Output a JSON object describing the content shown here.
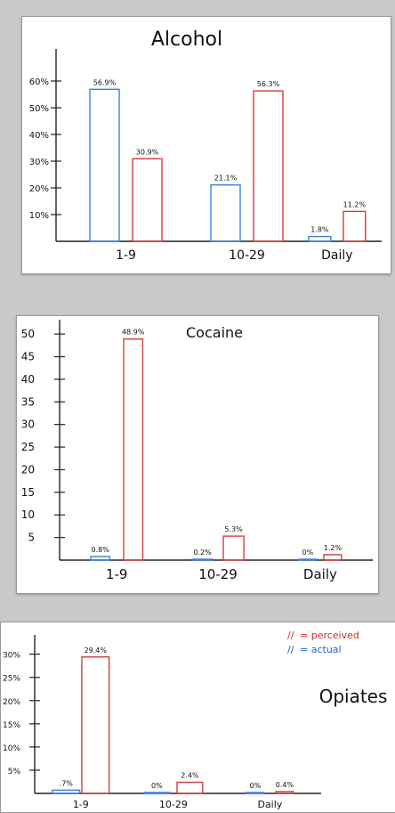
{
  "chart_data": [
    {
      "type": "bar",
      "title": "Alcohol",
      "categories": [
        "1-9",
        "10-29",
        "Daily"
      ],
      "yticks": [
        "60%",
        "50%",
        "40%",
        "30%",
        "20%",
        "10%"
      ],
      "ylim": [
        0,
        70
      ],
      "series": [
        {
          "values": [
            56.9,
            21.1,
            1.8
          ],
          "labels": [
            "56.9%",
            "21.1%",
            "1.8%"
          ],
          "color": "#3a7fe0"
        },
        {
          "values": [
            30.9,
            56.3,
            11.2
          ],
          "labels": [
            "30.9%",
            "56.3%",
            "11.2%"
          ],
          "color": "#d63b3b"
        }
      ]
    },
    {
      "type": "bar",
      "title": "Cocaine",
      "categories": [
        "1-9",
        "10-29",
        "Daily"
      ],
      "yticks": [
        "50",
        "45",
        "40",
        "35",
        "30",
        "25",
        "20",
        "15",
        "10",
        "5"
      ],
      "ylim": [
        0,
        52
      ],
      "series": [
        {
          "values": [
            0.8,
            0.2,
            0
          ],
          "labels": [
            "0.8%",
            "0.2%",
            "0%"
          ],
          "color": "#3a7fe0"
        },
        {
          "values": [
            48.9,
            5.3,
            1.2
          ],
          "labels": [
            "48.9%",
            "5.3%",
            "1.2%"
          ],
          "color": "#d63b3b"
        }
      ]
    },
    {
      "type": "bar",
      "title": "Opiates",
      "categories": [
        "1-9",
        "10-29",
        "Daily"
      ],
      "yticks": [
        "30%",
        "25%",
        "20%",
        "15%",
        "10%",
        "5%"
      ],
      "ylim": [
        0,
        33
      ],
      "series": [
        {
          "values": [
            0.7,
            0,
            0
          ],
          "labels": [
            ".7%",
            "0%",
            "0%"
          ],
          "color": "#3a7fe0"
        },
        {
          "values": [
            29.4,
            2.4,
            0.4
          ],
          "labels": [
            "29.4%",
            "2.4%",
            "0.4%"
          ],
          "color": "#d63b3b"
        }
      ],
      "legend": [
        {
          "swatch_text": "//",
          "label": "= perceived",
          "color": "#d62424"
        },
        {
          "swatch_text": "//",
          "label": "= actual",
          "color": "#1f5fd6"
        }
      ]
    }
  ]
}
